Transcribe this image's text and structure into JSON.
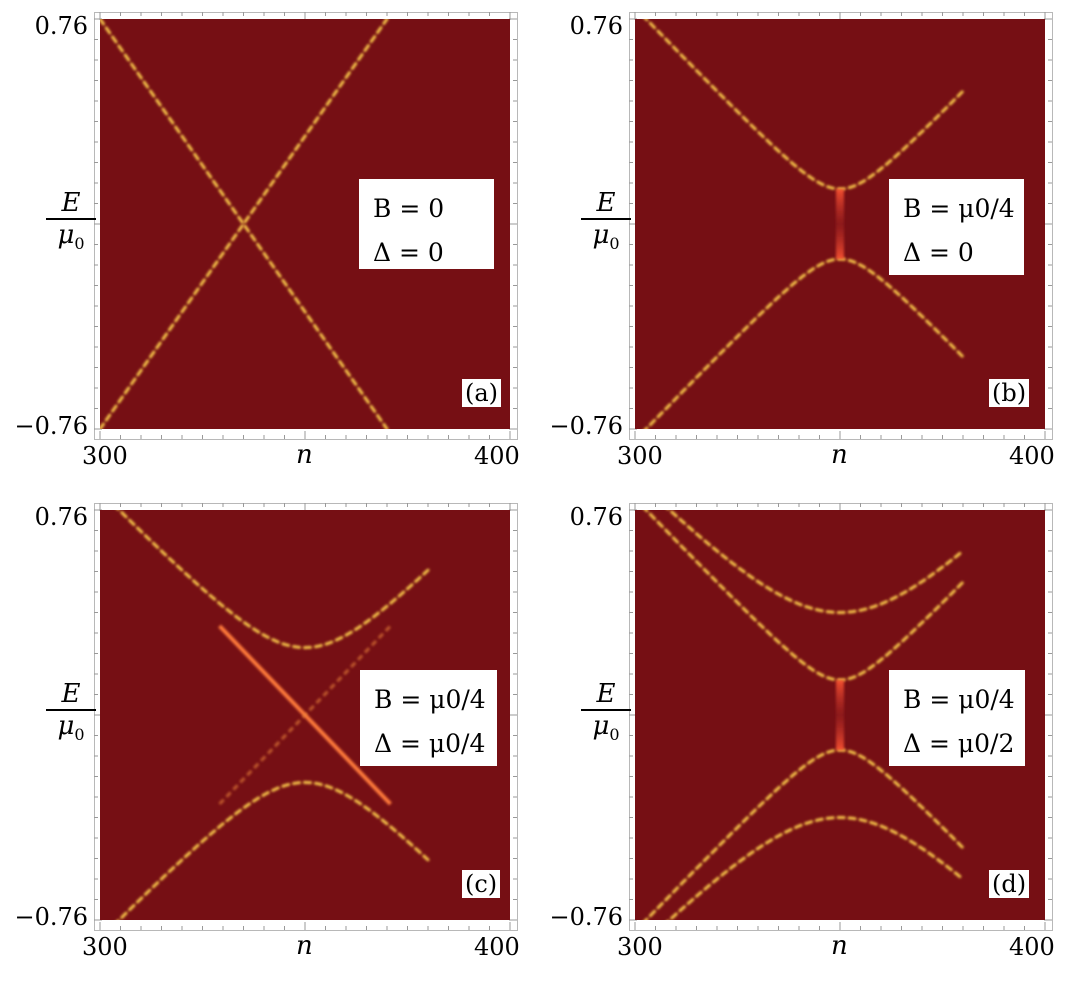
{
  "chart_data": [
    {
      "type": "heatmap",
      "panel_label": "(a)",
      "xlabel": "n",
      "ylabel_num": "E",
      "ylabel_den": "μ",
      "ylabel_den_sub": "0",
      "x_ticks": [
        "300",
        "400"
      ],
      "y_ticks": [
        "0.76",
        "−0.76"
      ],
      "xlim": [
        300,
        400
      ],
      "ylim": [
        -0.76,
        0.76
      ],
      "legend": [
        "B = 0",
        "Δ = 0"
      ],
      "background_color": "#760f14",
      "band_color": "#f6c44a",
      "bands": {
        "outer_gap": 0,
        "inner_gap": 0,
        "straight_extent": 0
      },
      "legend_position": "right-middle"
    },
    {
      "type": "heatmap",
      "panel_label": "(b)",
      "xlabel": "n",
      "ylabel_num": "E",
      "ylabel_den": "μ",
      "ylabel_den_sub": "0",
      "x_ticks": [
        "300",
        "400"
      ],
      "y_ticks": [
        "0.76",
        "−0.76"
      ],
      "xlim": [
        300,
        400
      ],
      "ylim": [
        -0.76,
        0.76
      ],
      "legend": [
        "B = μ0/4",
        "Δ = 0"
      ],
      "background_color": "#760f14",
      "band_color": "#f6c44a",
      "bands": {
        "outer_gap": 0.13,
        "inner_gap": 0,
        "straight_extent": 0
      },
      "legend_position": "right-middle"
    },
    {
      "type": "heatmap",
      "panel_label": "(c)",
      "xlabel": "n",
      "ylabel_num": "E",
      "ylabel_den": "μ",
      "ylabel_den_sub": "0",
      "x_ticks": [
        "300",
        "400"
      ],
      "y_ticks": [
        "0.76",
        "−0.76"
      ],
      "xlim": [
        300,
        400
      ],
      "ylim": [
        -0.76,
        0.76
      ],
      "legend": [
        "B = μ0/4",
        "Δ = μ0/4"
      ],
      "background_color": "#760f14",
      "band_color": "#f6c44a",
      "bands": {
        "outer_gap": 0.25,
        "inner_gap": 0,
        "straight_extent": 0.25
      },
      "legend_position": "right-middle"
    },
    {
      "type": "heatmap",
      "panel_label": "(d)",
      "xlabel": "n",
      "ylabel_num": "E",
      "ylabel_den": "μ",
      "ylabel_den_sub": "0",
      "x_ticks": [
        "300",
        "400"
      ],
      "y_ticks": [
        "0.76",
        "−0.76"
      ],
      "xlim": [
        300,
        400
      ],
      "ylim": [
        -0.76,
        0.76
      ],
      "legend": [
        "B = μ0/4",
        "Δ = μ0/2"
      ],
      "background_color": "#760f14",
      "band_color": "#f6c44a",
      "bands": {
        "outer_gap": 0.38,
        "inner_gap": 0.13,
        "straight_extent": 0
      },
      "legend_position": "right-middle"
    }
  ]
}
